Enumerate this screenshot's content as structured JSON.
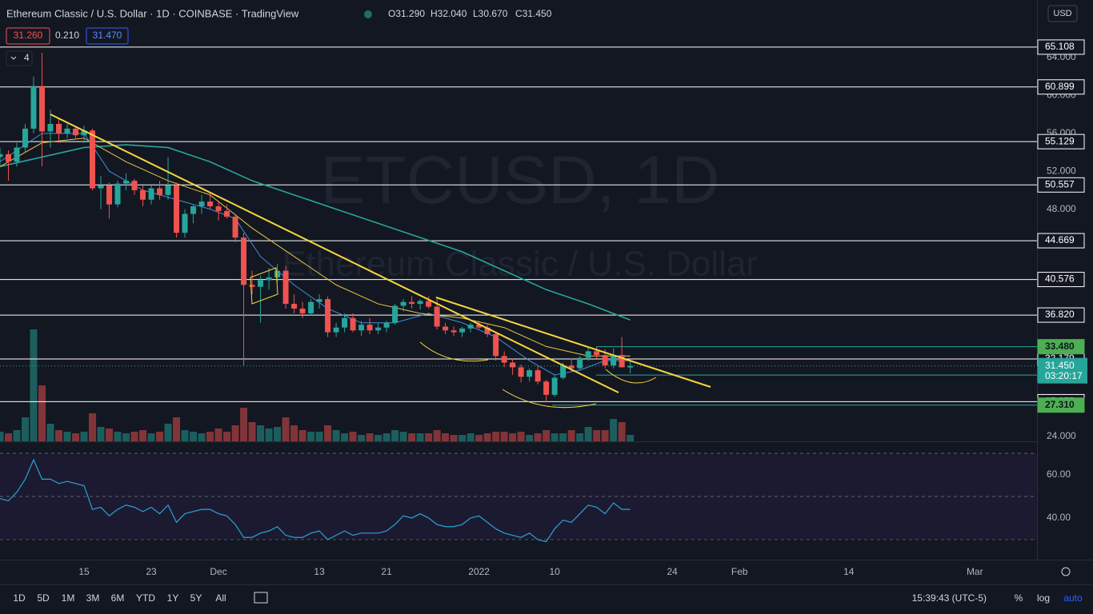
{
  "header": {
    "ohlc": [
      "O31.290",
      "H32.040",
      "L30.670",
      "C31.450"
    ]
  },
  "order_panel": {
    "sell": "31.260",
    "spread": "0.210",
    "buy": "31.470"
  },
  "indicator_count": "4",
  "currency": "USD",
  "watermark": {
    "line1": "ETCUSD, 1D",
    "line2": "Ethereum Classic / U.S. Dollar"
  },
  "toolbar": {
    "ranges": [
      "1D",
      "5D",
      "1M",
      "3M",
      "6M",
      "YTD",
      "1Y",
      "5Y",
      "All"
    ],
    "time": "15:39:43 (UTC-5)",
    "options": [
      "%",
      "log",
      "auto"
    ]
  },
  "chart_data": {
    "type": "candlestick",
    "title": "Ethereum Classic / U.S. Dollar · 1D · COINBASE · TradingView",
    "up_color": "#26a69a",
    "down_color": "#ef5350",
    "x": [
      5,
      6,
      7,
      8,
      9,
      10,
      11,
      12,
      13,
      14,
      15,
      16,
      17,
      18,
      19,
      20,
      21,
      22,
      23,
      24,
      25,
      26,
      27,
      28,
      29,
      30,
      31,
      32,
      33,
      34,
      35,
      36,
      37,
      38,
      39,
      40,
      41,
      42,
      43,
      44,
      45,
      46,
      47,
      48,
      49,
      50,
      51,
      52,
      53,
      54,
      55,
      56,
      57,
      58,
      59,
      60,
      61,
      62,
      63,
      64,
      65,
      66,
      67,
      68,
      69,
      70,
      71,
      72,
      73,
      74,
      75,
      76,
      77,
      78,
      79,
      80
    ],
    "open": [
      53.5,
      53.8,
      53,
      54.5,
      56.5,
      61,
      56.2,
      57,
      56,
      56.5,
      55.8,
      56.3,
      50.2,
      50.5,
      48.5,
      50.7,
      51,
      50,
      49,
      50.2,
      49.5,
      50.5,
      45.5,
      47.5,
      48.3,
      48.8,
      48.3,
      47.8,
      47.2,
      45,
      40,
      39.8,
      40.5,
      40.8,
      41.5,
      38,
      37.5,
      37,
      38.2,
      38.5,
      35,
      35.5,
      36.5,
      35.2,
      35.8,
      35.2,
      35.5,
      36,
      37.8,
      38.2,
      38,
      38.3,
      37.7,
      35.6,
      35.2,
      35,
      35.4,
      35.8,
      35.5,
      34.8,
      32.5,
      31.8,
      31.3,
      30.3,
      31,
      29.8,
      28.4,
      30.2,
      31.5,
      31.2,
      32.3,
      33,
      32.6,
      31.5,
      32.6,
      31.29
    ],
    "high": [
      54.5,
      54.2,
      55,
      57,
      62,
      64.5,
      58.5,
      57.5,
      57,
      56.8,
      56.8,
      56.5,
      51.5,
      50.8,
      51,
      51.8,
      51.2,
      50.5,
      50.5,
      51,
      53.5,
      50.8,
      48,
      48.5,
      49.5,
      49.8,
      48.9,
      48.5,
      47.5,
      45.5,
      41.5,
      41,
      41.8,
      42.2,
      42,
      39,
      38.2,
      38.5,
      39,
      38.8,
      36,
      37,
      37,
      36.2,
      36.5,
      36,
      36.2,
      38,
      38.5,
      38.8,
      38.5,
      38.8,
      38.5,
      36,
      35.6,
      35.6,
      36,
      36.2,
      35.8,
      35,
      33,
      32.2,
      31.6,
      31.2,
      31.5,
      30,
      30.5,
      31.8,
      32.2,
      32.5,
      33.4,
      33.5,
      33.2,
      33.3,
      34.5,
      32.04
    ],
    "low": [
      52.5,
      51,
      52.5,
      54,
      56,
      52.5,
      54.5,
      55,
      55.5,
      55.5,
      55,
      50,
      48,
      47,
      48.2,
      50,
      49.5,
      48.3,
      48.5,
      49,
      49,
      45,
      45,
      46.5,
      47.5,
      48,
      46.8,
      47,
      44.5,
      31.5,
      39,
      36,
      39.5,
      40.3,
      37.5,
      37,
      36.5,
      36.8,
      37.5,
      34.5,
      34.5,
      35,
      35,
      34.6,
      34.8,
      34.8,
      35,
      35.8,
      37.2,
      37.5,
      37.4,
      37.5,
      35.3,
      34.8,
      34.6,
      34.5,
      35,
      35.3,
      34.5,
      32,
      31.3,
      30.5,
      29.7,
      29.8,
      29.5,
      27.6,
      28.2,
      30,
      30.8,
      31,
      32,
      32.2,
      31.2,
      31.2,
      31.4,
      30.67
    ],
    "close": [
      53.8,
      53,
      54.5,
      56.5,
      61,
      56.2,
      57,
      56,
      56.5,
      55.8,
      56.3,
      50.2,
      50.5,
      48.5,
      50.7,
      51,
      50,
      49,
      50.2,
      49.5,
      50.5,
      45.5,
      47.5,
      48.3,
      48.8,
      48.3,
      47.8,
      47.2,
      45,
      40,
      39.8,
      40.5,
      40.8,
      41.5,
      38,
      37.5,
      37,
      38.2,
      38.5,
      35,
      35.5,
      36.5,
      35.2,
      35.8,
      35.2,
      35.5,
      36,
      37.8,
      38.2,
      38,
      38.3,
      37.7,
      35.6,
      35.2,
      35,
      35.4,
      35.8,
      35.5,
      34.8,
      32.5,
      31.8,
      31.3,
      30.3,
      31,
      29.8,
      28.4,
      30.2,
      31.5,
      31.2,
      32.3,
      33,
      32.6,
      31.5,
      32.6,
      31.3,
      31.45
    ],
    "volume": [
      12,
      10,
      14,
      30,
      140,
      70,
      22,
      14,
      12,
      10,
      12,
      35,
      18,
      16,
      12,
      10,
      12,
      14,
      10,
      12,
      22,
      30,
      14,
      12,
      10,
      12,
      16,
      12,
      20,
      42,
      24,
      20,
      16,
      18,
      30,
      20,
      14,
      12,
      12,
      20,
      14,
      10,
      12,
      8,
      10,
      8,
      10,
      14,
      12,
      10,
      10,
      10,
      14,
      10,
      8,
      8,
      10,
      8,
      10,
      12,
      12,
      10,
      12,
      8,
      10,
      14,
      10,
      10,
      14,
      10,
      18,
      14,
      14,
      28,
      24,
      8
    ],
    "xlim": [
      5,
      128.4
    ],
    "xticks": [
      {
        "value": 15,
        "label": "15"
      },
      {
        "value": 23,
        "label": "23"
      },
      {
        "value": 31,
        "label": "Dec"
      },
      {
        "value": 43,
        "label": "13"
      },
      {
        "value": 51,
        "label": "21"
      },
      {
        "value": 62,
        "label": "2022"
      },
      {
        "value": 71,
        "label": "10"
      },
      {
        "value": 85,
        "label": "24"
      },
      {
        "value": 93,
        "label": "Feb"
      },
      {
        "value": 106,
        "label": "14"
      },
      {
        "value": 121,
        "label": "Mar"
      }
    ],
    "ylim": [
      23.49,
      70.08
    ],
    "yticks": [
      {
        "value": 24,
        "label": "24.000"
      },
      {
        "value": 48,
        "label": "48.000"
      },
      {
        "value": 52,
        "label": "52.000"
      },
      {
        "value": 56,
        "label": "56.000"
      },
      {
        "value": 60,
        "label": "60.000"
      },
      {
        "value": 64,
        "label": "64.000"
      }
    ],
    "levels": [
      {
        "value": 65.108,
        "label": "65.108",
        "style": "white"
      },
      {
        "value": 60.899,
        "label": "60.899",
        "style": "white"
      },
      {
        "value": 55.129,
        "label": "55.129",
        "style": "white"
      },
      {
        "value": 50.557,
        "label": "50.557",
        "style": "white"
      },
      {
        "value": 44.669,
        "label": "44.669",
        "style": "white"
      },
      {
        "value": 40.576,
        "label": "40.576",
        "style": "white"
      },
      {
        "value": 36.82,
        "label": "36.820",
        "style": "white"
      },
      {
        "value": 32.179,
        "label": "32.179",
        "style": "white"
      },
      {
        "value": 27.675,
        "label": "27.675",
        "style": "white"
      },
      {
        "value": 33.48,
        "label": "33.480",
        "style": "green"
      },
      {
        "value": 30.49,
        "label": "30.490",
        "style": "green"
      },
      {
        "value": 27.31,
        "label": "27.310",
        "style": "green"
      }
    ],
    "last_price": {
      "value": 31.45,
      "label": "31.450",
      "countdown": "03:20:17",
      "color": "#26a69a"
    },
    "moving_averages": [
      {
        "color": "#26a69a",
        "x": [
          5,
          10,
          15,
          20,
          25,
          30,
          35,
          40,
          45,
          50,
          55,
          60,
          65,
          70,
          75,
          80
        ],
        "values": [
          52.5,
          53.5,
          54.5,
          54.8,
          54.5,
          53,
          51,
          49.5,
          48,
          46.5,
          45,
          43.5,
          41.5,
          39.5,
          38,
          36.3
        ]
      },
      {
        "color": "#e8c547",
        "x": [
          5,
          10,
          15,
          20,
          25,
          30,
          35,
          40,
          45,
          50,
          55,
          60,
          65,
          70,
          75,
          80
        ],
        "values": [
          52.5,
          55,
          55.5,
          53,
          51,
          49.5,
          46,
          43,
          40,
          38,
          37,
          36.5,
          35.5,
          33.5,
          32.5,
          32.5
        ]
      },
      {
        "color": "#3f8fd6",
        "x": [
          5,
          10,
          15,
          18,
          22,
          26,
          30,
          33,
          36,
          40,
          44,
          48,
          52,
          56,
          60,
          64,
          68,
          71,
          74,
          77,
          80
        ],
        "values": [
          53,
          56,
          56,
          52,
          50,
          49,
          48,
          47,
          43,
          40,
          37.5,
          36,
          36,
          37,
          36,
          34.5,
          32,
          30.5,
          31,
          32,
          32
        ]
      }
    ],
    "rsi": {
      "color": "#29a3d6",
      "values": [
        49,
        48,
        52,
        58,
        67,
        58,
        58,
        56,
        57,
        56,
        55,
        44,
        45,
        41,
        44,
        46,
        45,
        43,
        45,
        42,
        46,
        38,
        42,
        43,
        44,
        44,
        42,
        41,
        37,
        31,
        31,
        33,
        34,
        36,
        32,
        31,
        31,
        33,
        34,
        30,
        32,
        34,
        32,
        33,
        33,
        33,
        34,
        37,
        41,
        40,
        42,
        40,
        37,
        36,
        36,
        37,
        40,
        41,
        38,
        35,
        33,
        32,
        31,
        33,
        30,
        29,
        35,
        39,
        38,
        42,
        46,
        45,
        42,
        47,
        44,
        44
      ],
      "ylim": [
        20.7,
        75.2
      ],
      "yticks": [
        {
          "value": 40,
          "label": "40.00"
        },
        {
          "value": 60,
          "label": "60.00"
        }
      ],
      "bands": [
        70,
        50,
        30
      ]
    }
  }
}
